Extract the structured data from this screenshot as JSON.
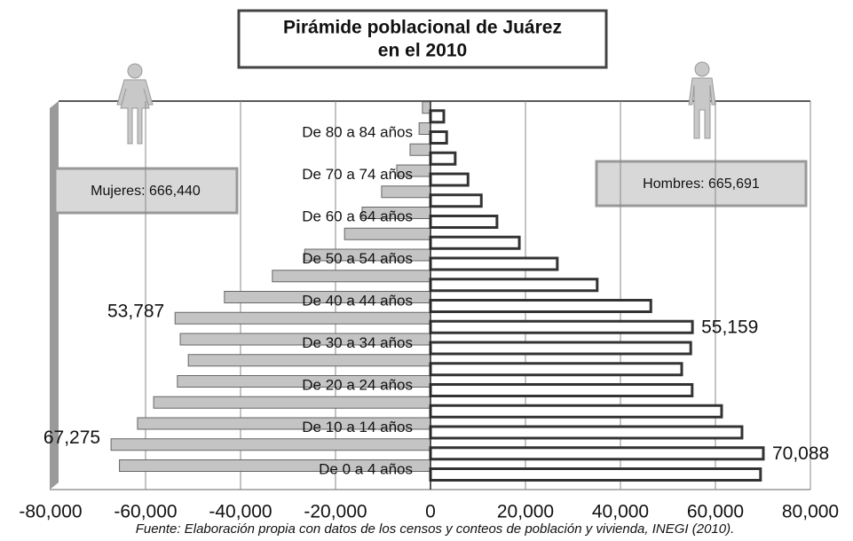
{
  "chart_data": {
    "type": "pyramid",
    "title": [
      "Pirámide poblacional de Juárez",
      "en el 2010"
    ],
    "categories": [
      "De 0 a 4 años",
      null,
      "De 10 a 14 años",
      null,
      "De 20 a 24 años",
      null,
      "De 30 a 34 años",
      null,
      "De 40 a 44 años",
      null,
      "De 50 a 54 años",
      null,
      "De 60 a 64 años",
      null,
      "De 70 a 74 años",
      null,
      "De 80 a 84 años",
      null
    ],
    "series": [
      {
        "color": "#c4c4c4",
        "values": [
          -65500,
          -67275,
          -61700,
          -58300,
          -53300,
          -51000,
          -52700,
          -53787,
          -43400,
          -33300,
          -26500,
          -18100,
          -14400,
          -10300,
          -7100,
          -4300,
          -2400,
          -1700
        ],
        "value_labels": [
          null,
          "67,275",
          null,
          null,
          null,
          null,
          null,
          "53,787",
          null,
          null,
          null,
          null,
          null,
          null,
          null,
          null,
          null,
          null
        ]
      },
      {
        "color": "#ffffff",
        "values": [
          69500,
          70088,
          65600,
          61300,
          55100,
          52900,
          54800,
          55159,
          46400,
          35100,
          26700,
          18700,
          14000,
          10700,
          7900,
          5200,
          3400,
          2800
        ],
        "value_labels": [
          null,
          "70,088",
          null,
          null,
          null,
          null,
          null,
          "55,159",
          null,
          null,
          null,
          null,
          null,
          null,
          null,
          null,
          null,
          null
        ]
      }
    ],
    "xlim": [
      -80000,
      80000
    ],
    "xticks": [
      {
        "value": -80000,
        "label": "-80,000"
      },
      {
        "value": -60000,
        "label": "-60,000"
      },
      {
        "value": -40000,
        "label": "-40,000"
      },
      {
        "value": -20000,
        "label": "-20,000"
      },
      0,
      {
        "value": 20000,
        "label": "20,000"
      },
      {
        "value": 40000,
        "label": "40,000"
      },
      {
        "value": 60000,
        "label": "60,000"
      },
      {
        "value": 80000,
        "label": "80,000"
      }
    ],
    "grid": true,
    "annotations": [
      "Mujeres: 666,440",
      "Hombres: 665,691"
    ],
    "source": "Fuente: Elaboración propia con datos de los censos y conteos de población y vivienda, INEGI (2010)."
  }
}
